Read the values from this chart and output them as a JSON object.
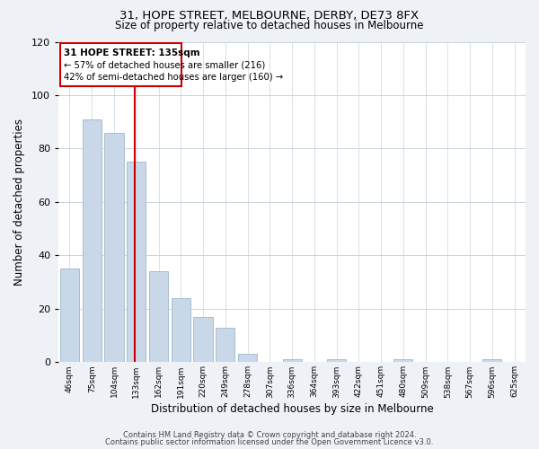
{
  "title": "31, HOPE STREET, MELBOURNE, DERBY, DE73 8FX",
  "subtitle": "Size of property relative to detached houses in Melbourne",
  "xlabel": "Distribution of detached houses by size in Melbourne",
  "ylabel": "Number of detached properties",
  "bar_color": "#c8d8e8",
  "bar_edge_color": "#a8bece",
  "annotation_box_color": "#cc0000",
  "vline_color": "#cc0000",
  "vline_index": 3,
  "annotation_title": "31 HOPE STREET: 135sqm",
  "annotation_line1": "← 57% of detached houses are smaller (216)",
  "annotation_line2": "42% of semi-detached houses are larger (160) →",
  "categories": [
    "46sqm",
    "75sqm",
    "104sqm",
    "133sqm",
    "162sqm",
    "191sqm",
    "220sqm",
    "249sqm",
    "278sqm",
    "307sqm",
    "336sqm",
    "364sqm",
    "393sqm",
    "422sqm",
    "451sqm",
    "480sqm",
    "509sqm",
    "538sqm",
    "567sqm",
    "596sqm",
    "625sqm"
  ],
  "values": [
    35,
    91,
    86,
    75,
    34,
    24,
    17,
    13,
    3,
    0,
    1,
    0,
    1,
    0,
    0,
    1,
    0,
    0,
    0,
    1,
    0
  ],
  "ylim": [
    0,
    120
  ],
  "yticks": [
    0,
    20,
    40,
    60,
    80,
    100,
    120
  ],
  "footer1": "Contains HM Land Registry data © Crown copyright and database right 2024.",
  "footer2": "Contains public sector information licensed under the Open Government Licence v3.0.",
  "background_color": "#eef2f6",
  "plot_background_color": "#ffffff"
}
